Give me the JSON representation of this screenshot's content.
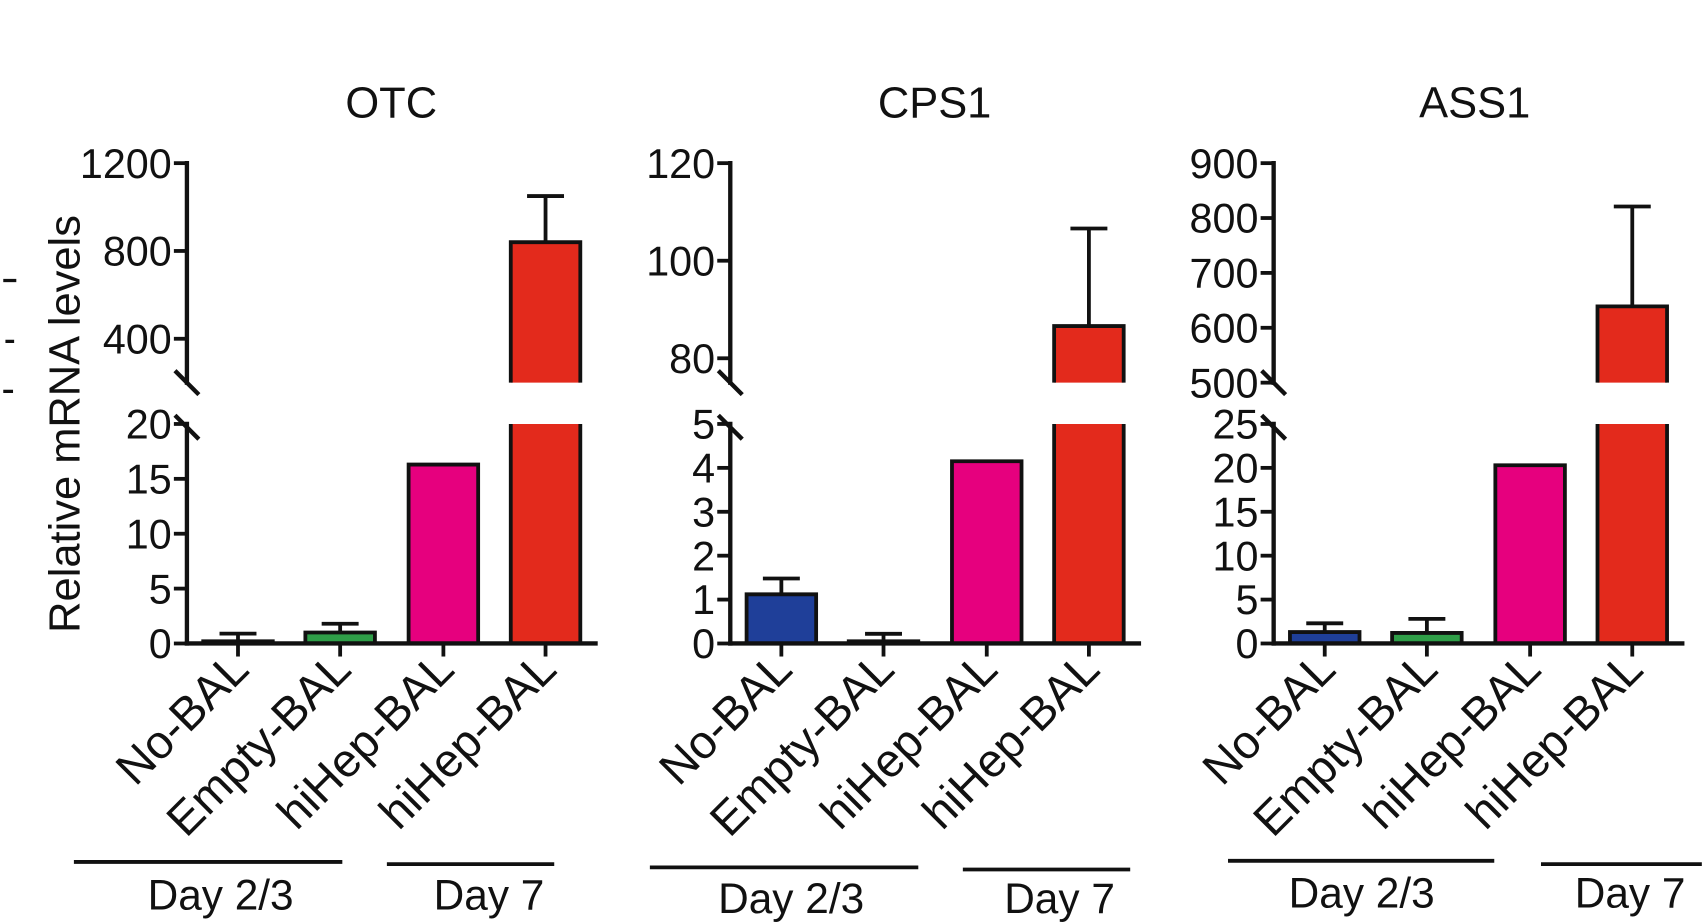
{
  "chart_data": [
    {
      "type": "bar",
      "title": "OTC",
      "ylabel": "Relative mRNA levels",
      "xlabel": "",
      "categories": [
        "No-BAL",
        "Empty-BAL",
        "hiHep-BAL",
        "hiHep-BAL"
      ],
      "values": [
        0.2,
        1.0,
        16.3,
        840
      ],
      "error_plus": [
        0.7,
        0.8,
        null,
        210
      ],
      "colors": [
        "#1f3f99",
        "#2f9e48",
        "#e6007e",
        "#e32a1c"
      ],
      "groups": [
        {
          "label": "Day 2/3",
          "category_indices": [
            0,
            1,
            2
          ]
        },
        {
          "label": "Day 7",
          "category_indices": [
            3
          ]
        }
      ],
      "y_axis_break": true,
      "ylim_lower": [
        0,
        20
      ],
      "yticks_lower": [
        0,
        5,
        10,
        15,
        20
      ],
      "ylim_upper": [
        200,
        1200
      ],
      "yticks_upper": [
        400,
        800,
        1200
      ],
      "grid": false
    },
    {
      "type": "bar",
      "title": "CPS1",
      "ylabel": "",
      "xlabel": "",
      "categories": [
        "No-BAL",
        "Empty-BAL",
        "hiHep-BAL",
        "hiHep-BAL"
      ],
      "values": [
        1.12,
        0.05,
        4.15,
        86.6
      ],
      "error_plus": [
        0.36,
        0.17,
        null,
        20
      ],
      "colors": [
        "#1f3f99",
        "#2f9e48",
        "#e6007e",
        "#e32a1c"
      ],
      "groups": [
        {
          "label": "Day 2/3",
          "category_indices": [
            0,
            1,
            2
          ]
        },
        {
          "label": "Day 7",
          "category_indices": [
            3
          ]
        }
      ],
      "y_axis_break": true,
      "ylim_lower": [
        0,
        5
      ],
      "yticks_lower": [
        0,
        1,
        2,
        3,
        4,
        5
      ],
      "ylim_upper": [
        75,
        120
      ],
      "yticks_upper": [
        80,
        100,
        120
      ],
      "grid": false
    },
    {
      "type": "bar",
      "title": "ASS1",
      "ylabel": "",
      "xlabel": "",
      "categories": [
        "No-BAL",
        "Empty-BAL",
        "hiHep-BAL",
        "hiHep-BAL"
      ],
      "values": [
        1.3,
        1.2,
        20.3,
        639
      ],
      "error_plus": [
        1.0,
        1.6,
        null,
        182
      ],
      "colors": [
        "#1f3f99",
        "#2f9e48",
        "#e6007e",
        "#e32a1c"
      ],
      "groups": [
        {
          "label": "Day 2/3",
          "category_indices": [
            0,
            1,
            2
          ]
        },
        {
          "label": "Day 7",
          "category_indices": [
            3
          ]
        }
      ],
      "y_axis_break": true,
      "ylim_lower": [
        0,
        25
      ],
      "yticks_lower": [
        0,
        5,
        10,
        15,
        20,
        25
      ],
      "ylim_upper": [
        500,
        900
      ],
      "yticks_upper": [
        500,
        600,
        700,
        800,
        900
      ],
      "grid": false
    }
  ]
}
